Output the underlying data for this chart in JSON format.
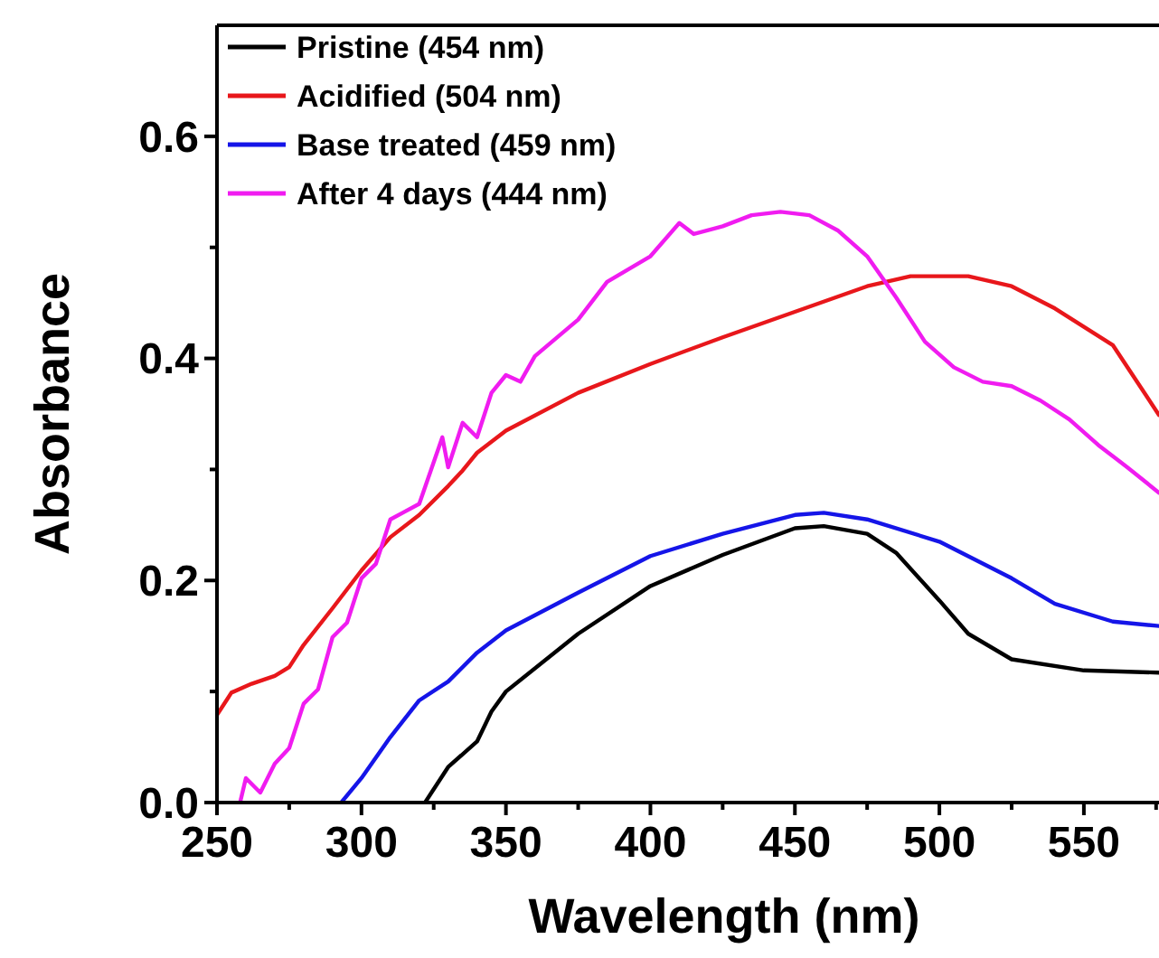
{
  "chart_data": {
    "type": "line",
    "xlabel": "Wavelength (nm)",
    "ylabel": "Absorbance",
    "xlim": [
      250,
      576
    ],
    "ylim": [
      0,
      0.7
    ],
    "xticks": [
      250,
      {
        "value": 275,
        "label": null
      },
      300,
      {
        "value": 325,
        "label": null
      },
      350,
      {
        "value": 375,
        "label": null
      },
      400,
      {
        "value": 425,
        "label": null
      },
      450,
      {
        "value": 475,
        "label": null
      },
      500,
      {
        "value": 525,
        "label": null
      },
      550,
      {
        "value": 575,
        "label": null
      }
    ],
    "yticks": [
      {
        "value": 0,
        "label": "0.0"
      },
      {
        "value": 0.1,
        "label": null
      },
      0.2,
      {
        "value": 0.3,
        "label": null
      },
      0.4,
      {
        "value": 0.5,
        "label": null
      },
      0.6
    ],
    "legend": "top left",
    "grid": false,
    "marker": "none",
    "line_style": "solid",
    "series": [
      {
        "name": "Pristine (454 nm)",
        "color": "#000000",
        "x": [
          322,
          330,
          340,
          345,
          350,
          375,
          400,
          425,
          450,
          460,
          475,
          485,
          500,
          510,
          525,
          550,
          576
        ],
        "values": [
          0,
          0.032,
          0.055,
          0.082,
          0.1,
          0.152,
          0.195,
          0.223,
          0.247,
          0.249,
          0.242,
          0.225,
          0.182,
          0.152,
          0.129,
          0.119,
          0.117
        ]
      },
      {
        "name": "Acidified (504 nm)",
        "color": "#e8171b",
        "x": [
          250,
          255,
          262,
          270,
          275,
          280,
          290,
          300,
          310,
          320,
          330,
          335,
          340,
          350,
          375,
          400,
          425,
          450,
          475,
          490,
          510,
          525,
          540,
          560,
          576
        ],
        "values": [
          0.079,
          0.099,
          0.107,
          0.114,
          0.122,
          0.142,
          0.175,
          0.209,
          0.239,
          0.259,
          0.285,
          0.299,
          0.315,
          0.335,
          0.369,
          0.395,
          0.419,
          0.442,
          0.465,
          0.474,
          0.474,
          0.465,
          0.445,
          0.412,
          0.349
        ]
      },
      {
        "name": "Base treated (459 nm)",
        "color": "#1515e8",
        "x": [
          293,
          300,
          310,
          320,
          330,
          340,
          350,
          375,
          400,
          425,
          450,
          460,
          475,
          500,
          525,
          540,
          560,
          576
        ],
        "values": [
          0,
          0.022,
          0.059,
          0.092,
          0.109,
          0.135,
          0.155,
          0.189,
          0.222,
          0.242,
          0.259,
          0.261,
          0.255,
          0.235,
          0.202,
          0.179,
          0.163,
          0.159
        ]
      },
      {
        "name": "After 4 days (444 nm)",
        "color": "#f01cf0",
        "x": [
          258,
          260,
          265,
          270,
          275,
          280,
          285,
          290,
          295,
          300,
          305,
          310,
          315,
          320,
          328,
          330,
          335,
          340,
          345,
          350,
          355,
          360,
          375,
          385,
          400,
          410,
          415,
          425,
          435,
          445,
          455,
          465,
          475,
          485,
          495,
          505,
          515,
          525,
          535,
          545,
          555,
          565,
          576
        ],
        "values": [
          0,
          0.022,
          0.009,
          0.035,
          0.049,
          0.089,
          0.102,
          0.149,
          0.162,
          0.202,
          0.215,
          0.255,
          0.262,
          0.269,
          0.329,
          0.302,
          0.342,
          0.329,
          0.369,
          0.385,
          0.379,
          0.402,
          0.435,
          0.469,
          0.492,
          0.522,
          0.512,
          0.519,
          0.529,
          0.532,
          0.529,
          0.515,
          0.492,
          0.455,
          0.415,
          0.392,
          0.379,
          0.375,
          0.362,
          0.345,
          0.322,
          0.302,
          0.279
        ]
      }
    ]
  }
}
